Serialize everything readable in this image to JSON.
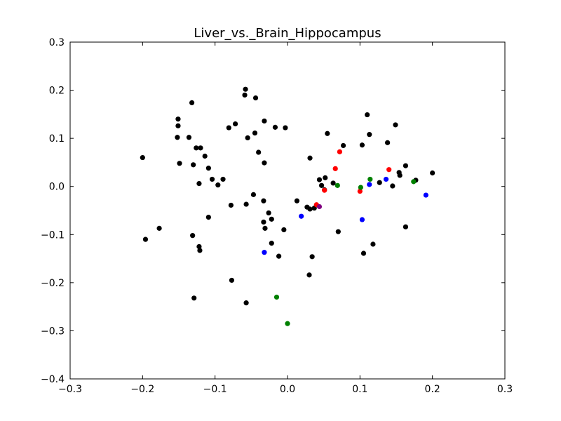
{
  "chart_data": {
    "type": "scatter",
    "title": "Liver_vs._Brain_Hippocampus",
    "xlabel": "",
    "ylabel": "",
    "xlim": [
      -0.3,
      0.3
    ],
    "ylim": [
      -0.4,
      0.3
    ],
    "xticks": [
      -0.3,
      -0.2,
      -0.1,
      0.0,
      0.1,
      0.2,
      0.3
    ],
    "yticks": [
      -0.4,
      -0.3,
      -0.2,
      -0.1,
      0.0,
      0.1,
      0.2,
      0.3
    ],
    "xtick_labels": [
      "−0.3",
      "−0.2",
      "−0.1",
      "0.0",
      "0.1",
      "0.2",
      "0.3"
    ],
    "ytick_labels": [
      "−0.4",
      "−0.3",
      "−0.2",
      "−0.1",
      "0.0",
      "0.1",
      "0.2",
      "0.3"
    ],
    "grid": false,
    "series": [
      {
        "color": "#000000",
        "points": [
          [
            -0.2,
            0.06
          ],
          [
            -0.196,
            -0.11
          ],
          [
            -0.177,
            -0.087
          ],
          [
            -0.151,
            0.14
          ],
          [
            -0.151,
            0.126
          ],
          [
            -0.152,
            0.102
          ],
          [
            -0.149,
            0.048
          ],
          [
            -0.136,
            0.102
          ],
          [
            -0.132,
            0.174
          ],
          [
            -0.13,
            0.045
          ],
          [
            -0.126,
            0.08
          ],
          [
            -0.12,
            0.08
          ],
          [
            -0.122,
            0.006
          ],
          [
            -0.122,
            -0.125
          ],
          [
            -0.121,
            -0.133
          ],
          [
            -0.114,
            0.063
          ],
          [
            -0.109,
            0.038
          ],
          [
            -0.104,
            0.015
          ],
          [
            -0.096,
            0.003
          ],
          [
            -0.089,
            0.015
          ],
          [
            -0.109,
            -0.064
          ],
          [
            -0.131,
            -0.102
          ],
          [
            -0.129,
            -0.232
          ],
          [
            -0.081,
            0.122
          ],
          [
            -0.072,
            0.13
          ],
          [
            -0.078,
            -0.039
          ],
          [
            -0.077,
            -0.195
          ],
          [
            -0.058,
            0.202
          ],
          [
            -0.059,
            0.19
          ],
          [
            -0.044,
            0.184
          ],
          [
            -0.055,
            0.101
          ],
          [
            -0.045,
            0.111
          ],
          [
            -0.04,
            0.071
          ],
          [
            -0.032,
            0.136
          ],
          [
            -0.032,
            0.049
          ],
          [
            -0.047,
            -0.017
          ],
          [
            -0.057,
            -0.037
          ],
          [
            -0.057,
            -0.242
          ],
          [
            -0.033,
            -0.03
          ],
          [
            -0.026,
            -0.055
          ],
          [
            -0.033,
            -0.074
          ],
          [
            -0.031,
            -0.087
          ],
          [
            -0.022,
            -0.068
          ],
          [
            -0.022,
            -0.118
          ],
          [
            -0.017,
            0.123
          ],
          [
            -0.003,
            0.122
          ],
          [
            -0.012,
            -0.145
          ],
          [
            -0.005,
            -0.09
          ],
          [
            0.013,
            -0.03
          ],
          [
            0.027,
            -0.043
          ],
          [
            0.031,
            -0.047
          ],
          [
            0.037,
            -0.045
          ],
          [
            0.031,
            0.059
          ],
          [
            0.044,
            0.014
          ],
          [
            0.052,
            0.018
          ],
          [
            0.047,
            0.002
          ],
          [
            0.051,
            -0.007
          ],
          [
            0.055,
            0.11
          ],
          [
            0.063,
            0.007
          ],
          [
            0.07,
            -0.094
          ],
          [
            0.077,
            0.085
          ],
          [
            0.103,
            0.086
          ],
          [
            0.11,
            0.149
          ],
          [
            0.113,
            0.108
          ],
          [
            0.118,
            -0.12
          ],
          [
            0.105,
            -0.139
          ],
          [
            0.127,
            0.008
          ],
          [
            0.138,
            0.091
          ],
          [
            0.145,
            0.001
          ],
          [
            0.149,
            0.128
          ],
          [
            0.154,
            0.029
          ],
          [
            0.155,
            0.023
          ],
          [
            0.163,
            0.043
          ],
          [
            0.163,
            -0.084
          ],
          [
            0.177,
            0.013
          ],
          [
            0.2,
            0.028
          ],
          [
            0.03,
            -0.184
          ],
          [
            0.034,
            -0.146
          ]
        ]
      },
      {
        "color": "#ff0000",
        "points": [
          [
            0.04,
            -0.038
          ],
          [
            0.051,
            -0.008
          ],
          [
            0.066,
            0.037
          ],
          [
            0.072,
            0.072
          ],
          [
            0.1,
            -0.01
          ],
          [
            0.14,
            0.035
          ]
        ]
      },
      {
        "color": "#0000ff",
        "points": [
          [
            -0.032,
            -0.137
          ],
          [
            0.019,
            -0.062
          ],
          [
            0.103,
            -0.069
          ],
          [
            0.113,
            0.004
          ],
          [
            0.136,
            0.015
          ],
          [
            0.191,
            -0.018
          ]
        ]
      },
      {
        "color": "#008000",
        "points": [
          [
            -0.015,
            -0.23
          ],
          [
            0.0,
            -0.285
          ],
          [
            0.069,
            0.002
          ],
          [
            0.101,
            -0.002
          ],
          [
            0.114,
            0.015
          ],
          [
            0.174,
            0.01
          ]
        ]
      },
      {
        "color": "#800080",
        "points": [
          [
            0.044,
            -0.042
          ]
        ]
      }
    ]
  }
}
